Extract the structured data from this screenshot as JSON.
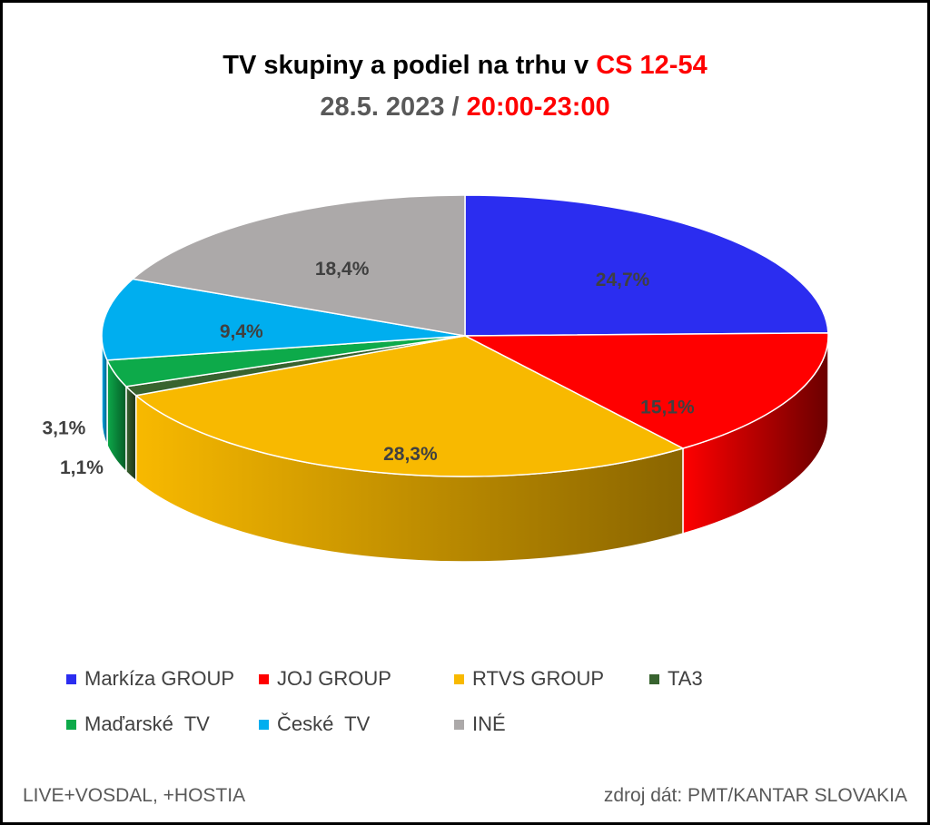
{
  "header": {
    "title_prefix": "TV skupiny a podiel na trhu v ",
    "title_target": "CS 12-54",
    "date": "28.5. 2023",
    "separator": " / ",
    "time_range": "20:00-23:00"
  },
  "chart_data": {
    "type": "pie",
    "title": "TV skupiny a podiel na trhu v CS 12-54",
    "subtitle": "28.5. 2023 / 20:00-23:00",
    "legend_position": "bottom",
    "slices": [
      {
        "name": "Markíza GROUP",
        "value": 24.7,
        "label": "24,7%",
        "color": "#2b2df0",
        "side_color": "#141470"
      },
      {
        "name": "JOJ GROUP",
        "value": 15.1,
        "label": "15,1%",
        "color": "#ff0000",
        "side_color": "#6b0000"
      },
      {
        "name": "RTVS GROUP",
        "value": 28.3,
        "label": "28,3%",
        "color": "#f8b900",
        "side_color": "#8a6500"
      },
      {
        "name": "TA3",
        "value": 1.1,
        "label": "1,1%",
        "color": "#38632f",
        "side_color": "#1c3318"
      },
      {
        "name": "Maďarské  TV",
        "value": 3.1,
        "label": "3,1%",
        "color": "#0daa4a",
        "side_color": "#055c27"
      },
      {
        "name": "České  TV",
        "value": 9.4,
        "label": "9,4%",
        "color": "#00aeef",
        "side_color": "#005a7d"
      },
      {
        "name": "INÉ",
        "value": 18.4,
        "label": "18,4%",
        "color": "#aca9a9",
        "side_color": "#5c5a5a"
      }
    ]
  },
  "footer": {
    "left": "LIVE+VOSDAL, +HOSTIA",
    "right": "zdroj dát: PMT/KANTAR SLOVAKIA"
  }
}
